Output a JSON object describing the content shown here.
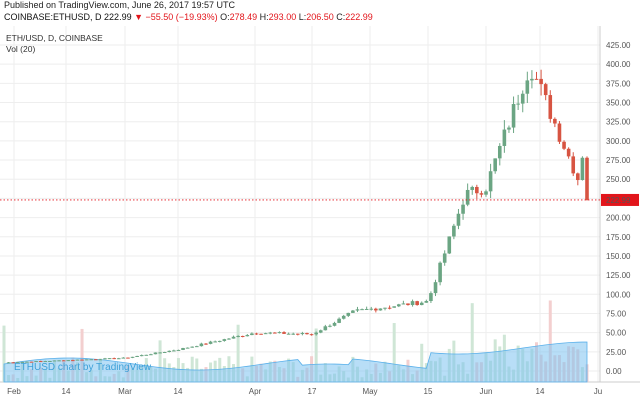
{
  "header": {
    "published": "Published on TradingView.com, June 26, 2017 19:57 UTC",
    "symbol": "COINBASE:ETHUSD,",
    "timeframe": "D",
    "last": "222.99",
    "change_arrow": "▼",
    "change": "−55.50 (−19.93%)",
    "open_label": "O:",
    "open": "278.49",
    "high_label": "H:",
    "high": "293.00",
    "low_label": "L:",
    "low": "206.50",
    "close_label": "C:",
    "close": "222.99"
  },
  "legend": {
    "title": "ETH/USD, D, COINBASE",
    "volume": "Vol (20)"
  },
  "watermark": "ETHUSD chart by TradingView",
  "colors": {
    "up": "#6ba583",
    "down": "#d75442",
    "volume_up": "#cfe6d6",
    "volume_down": "#f3cfcf",
    "volume_ma": "#7ec3f0",
    "last_price": "#e2151b",
    "grid": "#eeeeee"
  },
  "chart_data": {
    "type": "candlestick",
    "title": "ETH/USD, D, COINBASE",
    "x_axis_labels": [
      "Feb",
      "14",
      "Mar",
      "14",
      "Apr",
      "17",
      "May",
      "15",
      "Jun",
      "14",
      "Ju"
    ],
    "y_axis_labels": [
      "425.00",
      "400.00",
      "375.00",
      "350.00",
      "325.00",
      "300.00",
      "275.00",
      "250.00",
      "222.99",
      "200.00",
      "175.00",
      "150.00",
      "125.00",
      "100.00",
      "75.00",
      "50.00",
      "25.00",
      "0.00"
    ],
    "ylim": [
      0,
      430
    ],
    "last_price": 222.99,
    "volume_indicator": "Vol (20)",
    "key_closes": [
      {
        "date": "Feb",
        "close": 11
      },
      {
        "date": "Mar",
        "close": 17
      },
      {
        "date": "Mar 14",
        "close": 28
      },
      {
        "date": "Apr",
        "close": 50
      },
      {
        "date": "Apr 17",
        "close": 48
      },
      {
        "date": "May",
        "close": 78
      },
      {
        "date": "May 15",
        "close": 91
      },
      {
        "date": "May 31",
        "close": 230
      },
      {
        "date": "Jun",
        "close": 240
      },
      {
        "date": "Jun 12",
        "close": 400
      },
      {
        "date": "Jun 26",
        "close": 222.99
      }
    ]
  }
}
